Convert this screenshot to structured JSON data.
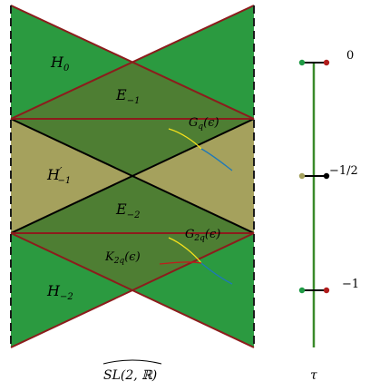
{
  "diagram": {
    "colors": {
      "light_green": "#2b9a40",
      "dark_green": "#4e7e33",
      "khaki": "#a5a15d",
      "maroon": "#8c1c1c",
      "black": "#000000",
      "curve_yellow": "#f5e11c",
      "curve_blue": "#1e78b8",
      "axis_green": "#3a8a2a",
      "dot_green": "#1f9a45",
      "dot_red": "#b01c1c",
      "dot_khaki": "#a5a15d"
    },
    "regions": {
      "h0": {
        "base": "H",
        "sub": "0"
      },
      "e1": {
        "base": "E",
        "sub": "−1"
      },
      "h1p": {
        "base": "H",
        "prime": "′",
        "sub": "−1"
      },
      "e2": {
        "base": "E",
        "sub": "−2"
      },
      "h2": {
        "base": "H",
        "sub": "−2"
      }
    },
    "curves": {
      "gq": {
        "base": "G",
        "sub": "q",
        "arg": "(ϵ)"
      },
      "g2q": {
        "base": "G",
        "sub": "2q",
        "arg": "(ϵ)"
      },
      "k2q": {
        "base": "K",
        "sub": "2q",
        "arg": "(ϵ)"
      }
    },
    "group_label": "SL(2, ℝ)",
    "tau": {
      "label": "τ",
      "ticks": [
        {
          "label": "0",
          "color": "dot_red",
          "left_dot": "dot_green"
        },
        {
          "label": "−1/2",
          "color": "black",
          "left_dot": "dot_khaki"
        },
        {
          "label": "−1",
          "color": "dot_red",
          "left_dot": "dot_green"
        }
      ]
    }
  }
}
